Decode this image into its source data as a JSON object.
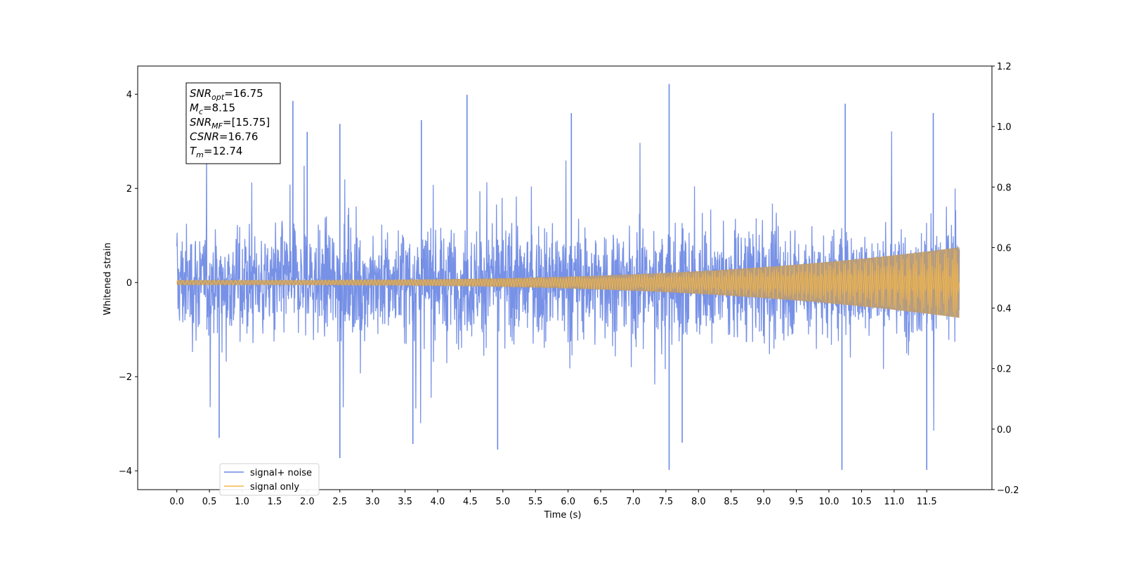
{
  "chart_data": {
    "type": "line",
    "xlabel": "Time (s)",
    "ylabel": "Whitened strain",
    "xlim": [
      -0.6,
      12.5
    ],
    "ylim": [
      -4.4,
      4.6
    ],
    "ylim_right": [
      -0.2,
      1.2
    ],
    "x_ticks": [
      "0.0",
      "0.5",
      "1.0",
      "1.5",
      "2.0",
      "2.5",
      "3.0",
      "3.5",
      "4.0",
      "4.5",
      "5.0",
      "5.5",
      "6.0",
      "6.5",
      "7.0",
      "7.5",
      "8.0",
      "8.5",
      "9.0",
      "9.5",
      "10.0",
      "10.5",
      "11.0",
      "11.5"
    ],
    "x_tick_values": [
      0,
      0.5,
      1,
      1.5,
      2,
      2.5,
      3,
      3.5,
      4,
      4.5,
      5,
      5.5,
      6,
      6.5,
      7,
      7.5,
      8,
      8.5,
      9,
      9.5,
      10,
      10.5,
      11,
      11.5
    ],
    "y_ticks": [
      "4",
      "2",
      "0",
      "−2",
      "−4"
    ],
    "y_tick_values": [
      4,
      2,
      0,
      -2,
      -4
    ],
    "y2_ticks": [
      "1.2",
      "1.0",
      "0.8",
      "0.6",
      "0.4",
      "0.2",
      "0.0",
      "−0.2"
    ],
    "y2_tick_values": [
      1.2,
      1.0,
      0.8,
      0.6,
      0.4,
      0.2,
      0.0,
      -0.2
    ],
    "series": [
      {
        "name": "signal+ noise",
        "color": "#6b88e4",
        "x_range": [
          0,
          12.0
        ],
        "envelope_typical": [
          -1.3,
          1.3
        ],
        "peaks": [
          {
            "x": 1.78,
            "y": 3.86
          },
          {
            "x": 2.0,
            "y": 3.2
          },
          {
            "x": 2.5,
            "y": 3.37
          },
          {
            "x": 3.75,
            "y": 3.45
          },
          {
            "x": 4.45,
            "y": 3.99
          },
          {
            "x": 6.05,
            "y": 3.6
          },
          {
            "x": 7.55,
            "y": 4.22
          },
          {
            "x": 10.25,
            "y": 3.8
          },
          {
            "x": 11.6,
            "y": 3.6
          },
          {
            "x": 2.5,
            "y": -3.73
          },
          {
            "x": 7.55,
            "y": -3.98
          },
          {
            "x": 10.2,
            "y": -3.98
          },
          {
            "x": 11.5,
            "y": -3.98
          },
          {
            "x": 7.75,
            "y": -3.4
          },
          {
            "x": 0.65,
            "y": -3.3
          },
          {
            "x": 3.62,
            "y": -3.43
          },
          {
            "x": 4.92,
            "y": -3.55
          }
        ]
      },
      {
        "name": "signal only",
        "color": "#f5b74a",
        "x_range": [
          0,
          12.0
        ],
        "amplitude_start": 0.05,
        "amplitude_end": 0.75
      }
    ],
    "legend": {
      "location": "lower-left",
      "entries": [
        "signal+ noise",
        "signal only"
      ]
    },
    "annotation": {
      "lines": [
        {
          "base": "SNR",
          "sub": "opt",
          "value": "=16.75"
        },
        {
          "base": "M",
          "sub": "c",
          "value": "=8.15"
        },
        {
          "base": "SNR",
          "sub": "MF",
          "value": "=[15.75]"
        },
        {
          "base": "CSNR",
          "sub": "",
          "value": "=16.76"
        },
        {
          "base": "T",
          "sub": "m",
          "value": "=12.74"
        }
      ]
    }
  }
}
